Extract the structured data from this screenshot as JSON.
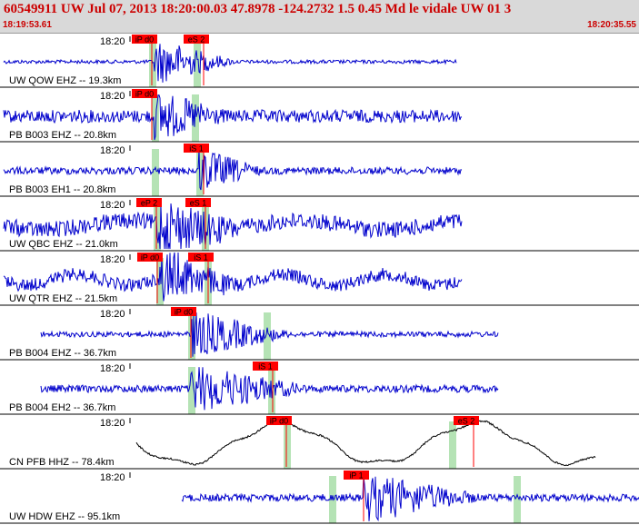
{
  "header": {
    "event_title": "60549911 UW Jul 07, 2013 18:20:00.03    47.8978 -124.2732   1.5 0.45 Md le vidale UW 01    3",
    "start_time": "18:19:53.61",
    "end_time": "18:20:35.55"
  },
  "colors": {
    "header_bg": "#d9d9d9",
    "header_text": "#cc0000",
    "trace_blue": "#0000cc",
    "trace_black": "#000000",
    "pick_red": "#ff0000",
    "window_green": "#b5e3b5"
  },
  "traces": [
    {
      "label": "UW QOW EHZ -- 19.3km",
      "time_label": "18:20",
      "color": "blue",
      "picks": [
        {
          "label": "iP d0"
        },
        {
          "label": "eS 2"
        }
      ]
    },
    {
      "label": "PB B003 EHZ -- 20.8km",
      "time_label": "18:20",
      "color": "blue",
      "picks": [
        {
          "label": "iP d0"
        }
      ]
    },
    {
      "label": "PB B003 EH1 -- 20.8km",
      "time_label": "18:20",
      "color": "blue",
      "picks": [
        {
          "label": "iS 1"
        }
      ]
    },
    {
      "label": "UW QBC EHZ -- 21.0km",
      "time_label": "18:20",
      "color": "blue",
      "picks": [
        {
          "label": "eP 2"
        },
        {
          "label": "eS 1"
        }
      ]
    },
    {
      "label": "UW QTR EHZ -- 21.5km",
      "time_label": "18:20",
      "color": "blue",
      "picks": [
        {
          "label": "iP d0"
        },
        {
          "label": "iS 1"
        }
      ]
    },
    {
      "label": "PB B004 EHZ -- 36.7km",
      "time_label": "18:20",
      "color": "blue",
      "picks": [
        {
          "label": "iP d0"
        }
      ]
    },
    {
      "label": "PB B004 EH2 -- 36.7km",
      "time_label": "18:20",
      "color": "blue",
      "picks": [
        {
          "label": "iS 1"
        }
      ]
    },
    {
      "label": "CN PFB HHZ -- 78.4km",
      "time_label": "18:20",
      "color": "black",
      "picks": [
        {
          "label": "iP d0"
        },
        {
          "label": "eS 2"
        }
      ]
    },
    {
      "label": "UW HDW EHZ -- 95.1km",
      "time_label": "18:20",
      "color": "blue",
      "picks": [
        {
          "label": "iP 1"
        }
      ]
    }
  ]
}
